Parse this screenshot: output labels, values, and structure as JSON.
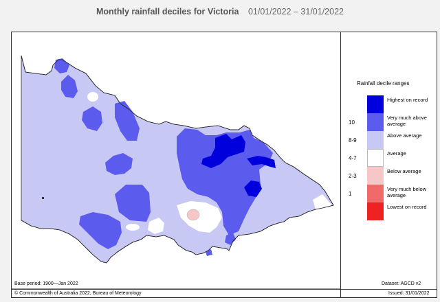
{
  "header": {
    "title": "Monthly rainfall deciles for Victoria",
    "dates": "01/01/2022 – 31/01/2022"
  },
  "legend": {
    "title": "Rainfall decile ranges",
    "rows": [
      {
        "range": "",
        "label": "Highest on record",
        "color": "#0000dd"
      },
      {
        "range": "10",
        "label": "Very much above average",
        "color": "#5b5bee"
      },
      {
        "range": "8-9",
        "label": "Above average",
        "color": "#c8c8f4"
      },
      {
        "range": "4-7",
        "label": "Average",
        "color": "#ffffff"
      },
      {
        "range": "2-3",
        "label": "Below average",
        "color": "#f7c6c6"
      },
      {
        "range": "1",
        "label": "Very much below average",
        "color": "#f06a6a"
      },
      {
        "range": "",
        "label": "Lowest on record",
        "color": "#ee2222"
      }
    ]
  },
  "footer": {
    "base_period": "Base period: 1900—Jan 2022",
    "dataset": "Dataset: AGCD v2",
    "copyright": "© Commonwealth of Australia 2022, Bureau of Meteorology",
    "issued": "Issued: 31/01/2022"
  }
}
